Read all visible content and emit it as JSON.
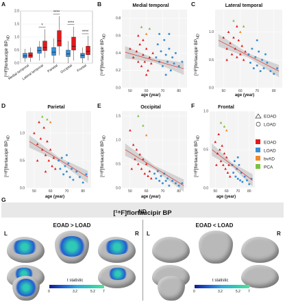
{
  "panels": {
    "A": {
      "label": "A"
    },
    "B": {
      "label": "B",
      "title": "Medial temporal"
    },
    "C": {
      "label": "C",
      "title": "Lateral temporal"
    },
    "D": {
      "label": "D",
      "title": "Parietal"
    },
    "E": {
      "label": "E",
      "title": "Occipital"
    },
    "F": {
      "label": "F",
      "title": "Frontal"
    },
    "G": {
      "label": "G"
    }
  },
  "ylabel_text": "[¹⁸F]flortaucipir BP",
  "ylabel_sub": "ND",
  "xlabel_text": "age (year)",
  "legend": {
    "shape_items": [
      {
        "label": "EOAD",
        "shape": "triangle"
      },
      {
        "label": "LOAD",
        "shape": "circle"
      }
    ],
    "color_items": [
      {
        "label": "EOAD",
        "color": "#e31a1c"
      },
      {
        "label": "LOAD",
        "color": "#3a8fd6"
      },
      {
        "label": "bvAD",
        "color": "#f28a2a"
      },
      {
        "label": "PCA",
        "color": "#7cc240"
      }
    ]
  },
  "brain_section": {
    "banner": "[¹⁸F]flortaucipir BP",
    "banner_sub": "ND",
    "left_title": "EOAD > LOAD",
    "right_title": "EOAD < LOAD",
    "L": "L",
    "R": "R",
    "colorbar_title": "t statistic",
    "colorbar_ticks": [
      "0",
      "3.2",
      "5.2",
      "7"
    ]
  },
  "chart_data": [
    {
      "panel": "A",
      "type": "box",
      "categories": [
        "Medial temporal",
        "Lateral temporal",
        "Parietal",
        "Occipital",
        "Frontal"
      ],
      "series": [
        {
          "name": "LOAD",
          "color": "#3a8fd6",
          "boxes": [
            [
              0.05,
              0.2,
              0.28,
              0.38,
              0.55
            ],
            [
              0.1,
              0.38,
              0.48,
              0.62,
              0.85
            ],
            [
              0.0,
              0.3,
              0.42,
              0.6,
              0.95
            ],
            [
              0.0,
              0.25,
              0.35,
              0.5,
              0.85
            ],
            [
              0.0,
              0.2,
              0.3,
              0.38,
              0.6
            ]
          ]
        },
        {
          "name": "EOAD",
          "color": "#e31a1c",
          "boxes": [
            [
              0.05,
              0.22,
              0.3,
              0.4,
              0.6
            ],
            [
              0.2,
              0.48,
              0.6,
              0.85,
              1.3
            ],
            [
              0.3,
              0.65,
              0.85,
              1.25,
              1.8
            ],
            [
              0.1,
              0.5,
              0.65,
              1.0,
              1.4
            ],
            [
              0.1,
              0.32,
              0.45,
              0.65,
              1.05
            ]
          ]
        }
      ],
      "significance": [
        "",
        "*",
        "****",
        "****",
        "****"
      ],
      "ylim": [
        0,
        2.0
      ],
      "yticks": [
        "0.0",
        "0.5",
        "1.0",
        "1.5",
        "2.0"
      ]
    },
    {
      "panel": "B",
      "type": "scatter",
      "title": "Medial temporal",
      "xlim": [
        45,
        85
      ],
      "ylim": [
        0,
        0.9
      ],
      "xticks": [
        "50",
        "60",
        "70",
        "80"
      ],
      "yticks": [
        "0.0",
        "0.2",
        "0.4",
        "0.6",
        "0.8"
      ],
      "eoad_points": [
        [
          50,
          0.45
        ],
        [
          52,
          0.35
        ],
        [
          54,
          0.42
        ],
        [
          55,
          0.3
        ],
        [
          56,
          0.5
        ],
        [
          57,
          0.25
        ],
        [
          58,
          0.38
        ],
        [
          59,
          0.3
        ],
        [
          60,
          0.45
        ],
        [
          61,
          0.2
        ],
        [
          62,
          0.35
        ],
        [
          63,
          0.28
        ],
        [
          64,
          0.4
        ],
        [
          55,
          0.6
        ],
        [
          58,
          0.55
        ],
        [
          60,
          0.15
        ]
      ],
      "load_points": [
        [
          66,
          0.35
        ],
        [
          67,
          0.5
        ],
        [
          68,
          0.3
        ],
        [
          69,
          0.42
        ],
        [
          70,
          0.25
        ],
        [
          71,
          0.55
        ],
        [
          72,
          0.38
        ],
        [
          73,
          0.3
        ],
        [
          74,
          0.45
        ],
        [
          75,
          0.2
        ],
        [
          76,
          0.35
        ],
        [
          77,
          0.28
        ],
        [
          78,
          0.4
        ],
        [
          80,
          0.25
        ],
        [
          82,
          0.3
        ],
        [
          68,
          0.62
        ],
        [
          72,
          0.15
        ],
        [
          74,
          0.62
        ]
      ],
      "other_points": [
        [
          57,
          0.7,
          "#7cc240"
        ],
        [
          60,
          0.62,
          "#f28a2a"
        ],
        [
          62,
          0.68,
          "#7cc240"
        ]
      ],
      "fit": [
        [
          47,
          0.41
        ],
        [
          83,
          0.22
        ]
      ]
    },
    {
      "panel": "C",
      "type": "scatter",
      "title": "Lateral temporal",
      "xlim": [
        45,
        85
      ],
      "ylim": [
        0,
        1.4
      ],
      "xticks": [
        "50",
        "60",
        "70",
        "80"
      ],
      "yticks": [
        "0.0",
        "0.5",
        "1.0"
      ],
      "eoad_points": [
        [
          50,
          0.9
        ],
        [
          52,
          0.7
        ],
        [
          53,
          1.0
        ],
        [
          54,
          0.8
        ],
        [
          55,
          0.6
        ],
        [
          56,
          0.9
        ],
        [
          57,
          0.7
        ],
        [
          58,
          0.55
        ],
        [
          59,
          0.85
        ],
        [
          60,
          0.6
        ],
        [
          61,
          0.75
        ],
        [
          62,
          0.5
        ],
        [
          63,
          0.65
        ],
        [
          52,
          0.5
        ],
        [
          58,
          1.1
        ]
      ],
      "load_points": [
        [
          65,
          0.6
        ],
        [
          66,
          0.45
        ],
        [
          67,
          0.7
        ],
        [
          68,
          0.35
        ],
        [
          69,
          0.55
        ],
        [
          70,
          0.4
        ],
        [
          71,
          0.65
        ],
        [
          72,
          0.3
        ],
        [
          73,
          0.5
        ],
        [
          74,
          0.35
        ],
        [
          76,
          0.45
        ],
        [
          78,
          0.3
        ],
        [
          80,
          0.25
        ],
        [
          82,
          0.35
        ],
        [
          70,
          0.85
        ],
        [
          75,
          0.6
        ]
      ],
      "other_points": [
        [
          56,
          1.2,
          "#7cc240"
        ],
        [
          60,
          1.0,
          "#f28a2a"
        ],
        [
          62,
          1.1,
          "#7cc240"
        ]
      ],
      "fit": [
        [
          47,
          0.85
        ],
        [
          83,
          0.3
        ]
      ]
    },
    {
      "panel": "D",
      "type": "scatter",
      "title": "Parietal",
      "xlim": [
        45,
        85
      ],
      "ylim": [
        0,
        1.4
      ],
      "xticks": [
        "50",
        "60",
        "70",
        "80"
      ],
      "yticks": [
        "0.0",
        "0.5",
        "1.0"
      ],
      "eoad_points": [
        [
          50,
          1.0
        ],
        [
          52,
          0.8
        ],
        [
          53,
          1.2
        ],
        [
          54,
          0.9
        ],
        [
          55,
          0.7
        ],
        [
          56,
          1.1
        ],
        [
          57,
          0.6
        ],
        [
          58,
          0.85
        ],
        [
          59,
          0.5
        ],
        [
          60,
          0.7
        ],
        [
          61,
          0.4
        ],
        [
          62,
          0.55
        ],
        [
          63,
          0.35
        ],
        [
          52,
          0.5
        ],
        [
          57,
          0.3
        ]
      ],
      "load_points": [
        [
          65,
          0.5
        ],
        [
          66,
          0.35
        ],
        [
          67,
          0.55
        ],
        [
          68,
          0.25
        ],
        [
          69,
          0.4
        ],
        [
          70,
          0.3
        ],
        [
          71,
          0.45
        ],
        [
          72,
          0.2
        ],
        [
          73,
          0.35
        ],
        [
          74,
          0.15
        ],
        [
          76,
          0.3
        ],
        [
          78,
          0.2
        ],
        [
          80,
          0.1
        ],
        [
          82,
          0.25
        ],
        [
          70,
          0.6
        ]
      ],
      "other_points": [
        [
          55,
          1.3,
          "#7cc240"
        ],
        [
          58,
          1.25,
          "#7cc240"
        ],
        [
          60,
          1.2,
          "#f28a2a"
        ]
      ],
      "fit": [
        [
          47,
          0.85
        ],
        [
          83,
          0.2
        ]
      ]
    },
    {
      "panel": "E",
      "type": "scatter",
      "title": "Occipital",
      "xlim": [
        45,
        85
      ],
      "ylim": [
        0,
        1.6
      ],
      "xticks": [
        "50",
        "60",
        "70",
        "80"
      ],
      "yticks": [
        "0.0",
        "0.5",
        "1.0",
        "1.5"
      ],
      "eoad_points": [
        [
          50,
          1.2
        ],
        [
          52,
          0.9
        ],
        [
          53,
          0.6
        ],
        [
          54,
          0.8
        ],
        [
          55,
          0.5
        ],
        [
          56,
          0.7
        ],
        [
          57,
          0.4
        ],
        [
          58,
          0.6
        ],
        [
          59,
          0.3
        ],
        [
          60,
          0.5
        ],
        [
          61,
          0.25
        ],
        [
          62,
          0.35
        ],
        [
          63,
          0.2
        ],
        [
          51,
          0.4
        ]
      ],
      "load_points": [
        [
          65,
          0.3
        ],
        [
          66,
          0.2
        ],
        [
          67,
          0.35
        ],
        [
          68,
          0.15
        ],
        [
          69,
          0.25
        ],
        [
          70,
          0.1
        ],
        [
          71,
          0.3
        ],
        [
          72,
          0.15
        ],
        [
          73,
          0.2
        ],
        [
          74,
          0.05
        ],
        [
          76,
          0.15
        ],
        [
          78,
          0.1
        ],
        [
          80,
          0.05
        ],
        [
          82,
          0.1
        ]
      ],
      "other_points": [
        [
          55,
          1.5,
          "#7cc240"
        ],
        [
          58,
          1.3,
          "#7cc240"
        ],
        [
          60,
          1.1,
          "#f28a2a"
        ]
      ],
      "fit": [
        [
          47,
          0.8
        ],
        [
          83,
          0.05
        ]
      ]
    },
    {
      "panel": "F",
      "type": "scatter",
      "title": "Frontal",
      "xlim": [
        45,
        85
      ],
      "ylim": [
        0,
        1.0
      ],
      "xticks": [
        "50",
        "60",
        "70",
        "80"
      ],
      "yticks": [
        "0.0",
        "0.5",
        "1.0"
      ],
      "eoad_points": [
        [
          50,
          0.6
        ],
        [
          52,
          0.45
        ],
        [
          53,
          0.7
        ],
        [
          54,
          0.5
        ],
        [
          55,
          0.35
        ],
        [
          56,
          0.55
        ],
        [
          57,
          0.3
        ],
        [
          58,
          0.45
        ],
        [
          59,
          0.25
        ],
        [
          60,
          0.4
        ],
        [
          61,
          0.2
        ],
        [
          62,
          0.3
        ],
        [
          63,
          0.15
        ],
        [
          51,
          0.3
        ]
      ],
      "load_points": [
        [
          65,
          0.3
        ],
        [
          66,
          0.2
        ],
        [
          67,
          0.35
        ],
        [
          68,
          0.15
        ],
        [
          69,
          0.25
        ],
        [
          70,
          0.12
        ],
        [
          71,
          0.3
        ],
        [
          72,
          0.1
        ],
        [
          73,
          0.2
        ],
        [
          74,
          0.08
        ],
        [
          76,
          0.15
        ],
        [
          78,
          0.1
        ],
        [
          80,
          0.05
        ],
        [
          82,
          0.12
        ],
        [
          70,
          0.4
        ]
      ],
      "other_points": [
        [
          55,
          0.85,
          "#7cc240"
        ],
        [
          58,
          0.8,
          "#7cc240"
        ],
        [
          60,
          0.75,
          "#f28a2a"
        ]
      ],
      "fit": [
        [
          47,
          0.5
        ],
        [
          83,
          0.1
        ]
      ]
    }
  ]
}
